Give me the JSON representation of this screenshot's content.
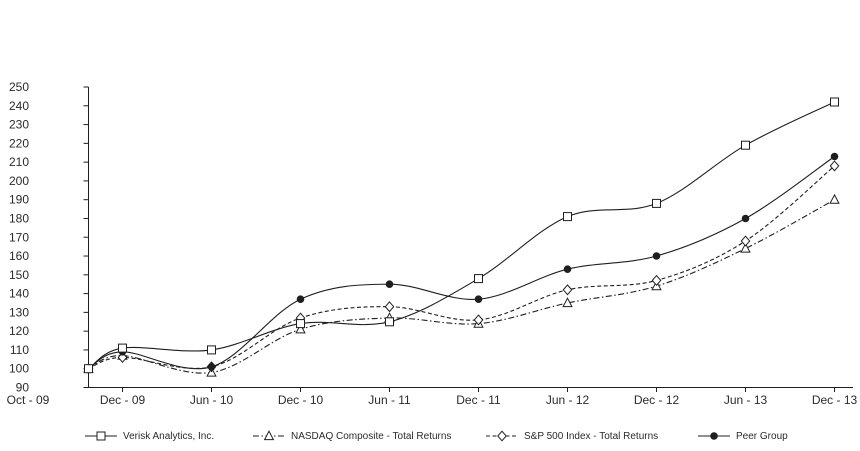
{
  "chart_data": {
    "type": "line",
    "title": "",
    "xlabel": "",
    "ylabel": "",
    "x_labels": [
      "Oct - 09",
      "Dec - 09",
      "Jun - 10",
      "Dec - 10",
      "Jun - 11",
      "Dec - 11",
      "Jun - 12",
      "Dec - 12",
      "Jun - 13",
      "Dec - 13"
    ],
    "y_axis": {
      "min": 90,
      "max": 250,
      "step": 10
    },
    "grid": false,
    "legend_position": "bottom",
    "line_color": "#1f1f1f",
    "background_color": "#ffffff",
    "series": [
      {
        "name": "Verisk Analytics, Inc.",
        "marker": "square-open",
        "line_style": "solid",
        "values": [
          100,
          111,
          110,
          124,
          125,
          148,
          181,
          188,
          219,
          242
        ]
      },
      {
        "name": "NASDAQ Composite - Total Returns",
        "marker": "triangle-open",
        "line_style": "dash-dot",
        "values": [
          100,
          107,
          98,
          121,
          127,
          124,
          135,
          144,
          164,
          190
        ]
      },
      {
        "name": "S&P 500 Index - Total Returns",
        "marker": "diamond-open",
        "line_style": "dashed",
        "values": [
          100,
          106,
          101,
          127,
          133,
          126,
          142,
          147,
          168,
          208
        ]
      },
      {
        "name": "Peer Group",
        "marker": "circle-filled",
        "line_style": "solid",
        "values": [
          100,
          109,
          101,
          137,
          145,
          137,
          153,
          160,
          180,
          213
        ]
      }
    ]
  }
}
